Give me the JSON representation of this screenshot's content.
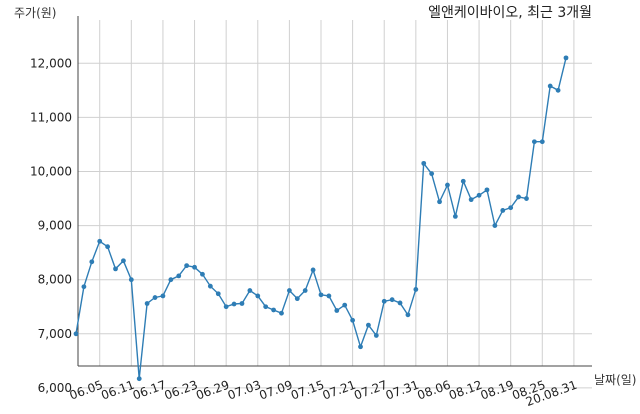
{
  "chart_data": {
    "type": "line",
    "title": "엘앤케이바이오, 최근 3개월",
    "xlabel": "날짜(일)",
    "ylabel": "주가(원)",
    "ylim": [
      5900,
      12500
    ],
    "yticks": [
      6000,
      7000,
      8000,
      9000,
      10000,
      11000,
      12000
    ],
    "ytick_labels": [
      "6,000",
      "7,000",
      "8,000",
      "9,000",
      "10,000",
      "11,000",
      "12,000"
    ],
    "grid": true,
    "color": "#2e7db5",
    "x_ticks": [
      {
        "label": "06.05",
        "index": 3
      },
      {
        "label": "06.11",
        "index": 7
      },
      {
        "label": "06.17",
        "index": 11
      },
      {
        "label": "06.23",
        "index": 15
      },
      {
        "label": "06.29",
        "index": 19
      },
      {
        "label": "07.03",
        "index": 23
      },
      {
        "label": "07.09",
        "index": 27
      },
      {
        "label": "07.15",
        "index": 31
      },
      {
        "label": "07.21",
        "index": 35
      },
      {
        "label": "07.27",
        "index": 39
      },
      {
        "label": "07.31",
        "index": 43
      },
      {
        "label": "08.06",
        "index": 47
      },
      {
        "label": "08.12",
        "index": 51
      },
      {
        "label": "08.19",
        "index": 55
      },
      {
        "label": "08.25",
        "index": 59
      },
      {
        "label": "20.08.31",
        "index": 63
      }
    ],
    "series": [
      {
        "values": [
          7000,
          7870,
          8330,
          8710,
          8610,
          8200,
          8350,
          8000,
          6170,
          7560,
          7670,
          7700,
          8000,
          8070,
          8260,
          8230,
          8100,
          7880,
          7740,
          7500,
          7550,
          7560,
          7800,
          7700,
          7500,
          7440,
          7380,
          7800,
          7650,
          7800,
          8180,
          7720,
          7700,
          7430,
          7530,
          7250,
          6760,
          7160,
          6970,
          7600,
          7630,
          7570,
          7350,
          7820,
          10150,
          9960,
          9440,
          9750,
          9170,
          9820,
          9480,
          9560,
          9660,
          9000,
          9280,
          9330,
          9530,
          9500,
          10550,
          10550,
          11580,
          11500,
          12100
        ]
      }
    ]
  }
}
